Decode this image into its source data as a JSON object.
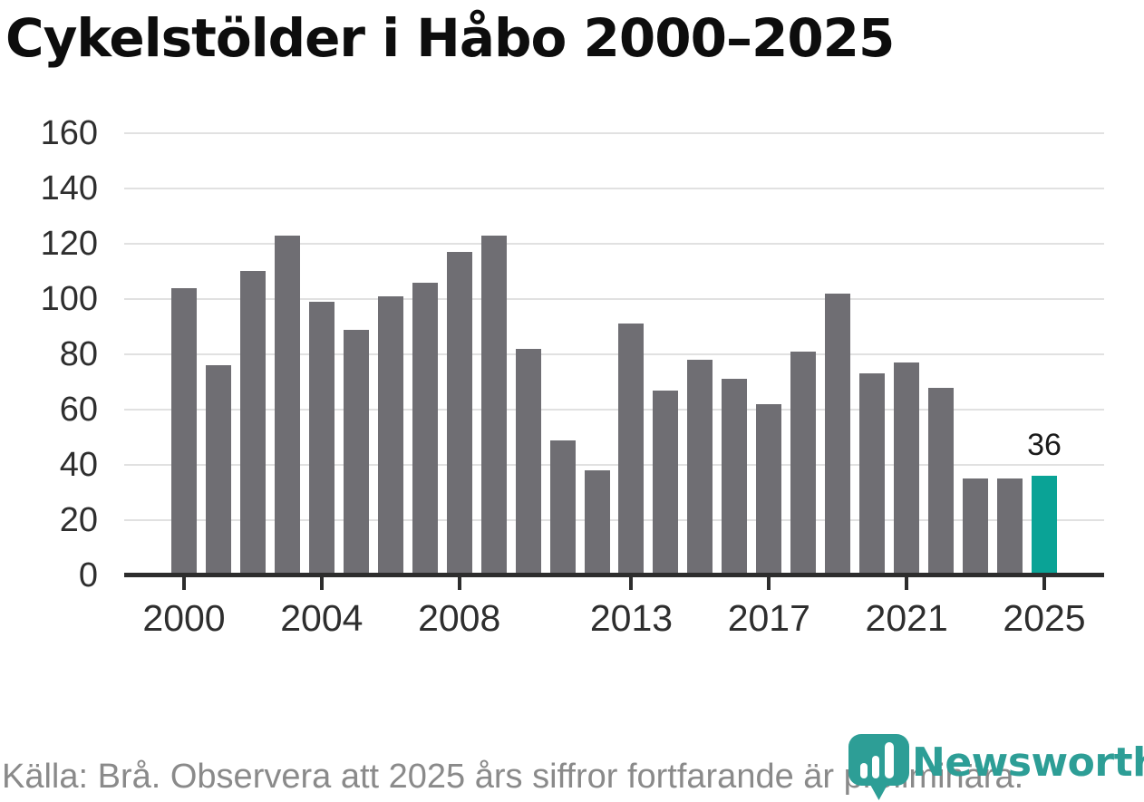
{
  "title": "Cykelstölder i Håbo 2000–2025",
  "chart_data": {
    "type": "bar",
    "x": [
      2000,
      2001,
      2002,
      2003,
      2004,
      2005,
      2006,
      2007,
      2008,
      2009,
      2010,
      2011,
      2012,
      2013,
      2014,
      2015,
      2016,
      2017,
      2018,
      2019,
      2020,
      2021,
      2022,
      2023,
      2024,
      2025
    ],
    "values": [
      104,
      76,
      110,
      123,
      99,
      89,
      101,
      106,
      117,
      123,
      82,
      49,
      38,
      91,
      67,
      78,
      71,
      62,
      81,
      102,
      73,
      77,
      68,
      35,
      35,
      36
    ],
    "highlight_index": 25,
    "highlight_value_label": "36",
    "ylim": [
      0,
      160
    ],
    "yticks": [
      0,
      20,
      40,
      60,
      80,
      100,
      120,
      140,
      160
    ],
    "xticks": [
      {
        "label": "2000",
        "index": 0
      },
      {
        "label": "2004",
        "index": 4
      },
      {
        "label": "2008",
        "index": 8
      },
      {
        "label": "2013",
        "index": 13
      },
      {
        "label": "2017",
        "index": 17
      },
      {
        "label": "2021",
        "index": 21
      },
      {
        "label": "2025",
        "index": 25
      }
    ],
    "grid": true,
    "legend_position": "none",
    "colors": {
      "bar": "#6f6e73",
      "highlight_bar": "#0aa396",
      "axis": "#2d2d2d",
      "gridline": "#e1e1e1",
      "tick_text": "#2e2e2e",
      "value_label_text": "#1a1a1a"
    }
  },
  "footer": {
    "source_text": "Källa: Brå. Observera att 2025 års siffror fortfarande är preliminära."
  },
  "brand": {
    "name": "Newsworthy",
    "color": "#2d9e96",
    "logo_icon": "map-pin-with-bar-chart-icon"
  }
}
